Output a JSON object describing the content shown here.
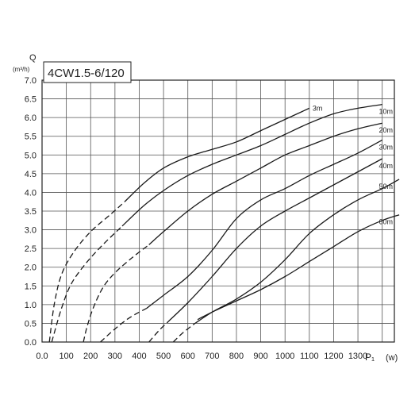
{
  "chart_data": {
    "type": "line",
    "title": "4CW1.5-6/120",
    "ylabel": "Q",
    "yunit": "(m³/h)",
    "xlabel": "P₁",
    "xunit": "(w)",
    "xlim": [
      0,
      1450
    ],
    "ylim": [
      0,
      7.0
    ],
    "x_ticks": [
      0,
      100,
      200,
      300,
      400,
      500,
      600,
      700,
      800,
      900,
      1000,
      1100,
      1200,
      1300
    ],
    "x_tick_labels": [
      "0.0",
      "100",
      "200",
      "300",
      "400",
      "500",
      "600",
      "700",
      "800",
      "900",
      "1000",
      "1100",
      "1200",
      "1300"
    ],
    "y_ticks": [
      0,
      0.5,
      1.0,
      1.5,
      2.0,
      2.5,
      3.0,
      3.5,
      4.0,
      4.5,
      5.0,
      5.5,
      6.0,
      6.5,
      7.0
    ],
    "y_tick_labels": [
      "0.0",
      "0.5",
      "1.0",
      "1.5",
      "2.0",
      "2.5",
      "3.0",
      "3.5",
      "4.0",
      "4.5",
      "5.0",
      "5.5",
      "6.0",
      "6.5",
      "7.0"
    ],
    "grid": true,
    "series": [
      {
        "name": "3m",
        "dashed": [
          [
            30,
            0
          ],
          [
            50,
            1.0
          ],
          [
            80,
            1.8
          ],
          [
            130,
            2.4
          ],
          [
            200,
            2.95
          ],
          [
            280,
            3.4
          ],
          [
            340,
            3.75
          ]
        ],
        "solid": [
          [
            340,
            3.75
          ],
          [
            420,
            4.25
          ],
          [
            500,
            4.65
          ],
          [
            600,
            4.95
          ],
          [
            700,
            5.15
          ],
          [
            800,
            5.35
          ],
          [
            900,
            5.65
          ],
          [
            1000,
            5.95
          ],
          [
            1100,
            6.25
          ]
        ]
      },
      {
        "name": "10m",
        "dashed": [
          [
            40,
            0
          ],
          [
            80,
            0.9
          ],
          [
            120,
            1.55
          ],
          [
            180,
            2.1
          ],
          [
            250,
            2.6
          ],
          [
            330,
            3.1
          ]
        ],
        "solid": [
          [
            330,
            3.1
          ],
          [
            420,
            3.65
          ],
          [
            500,
            4.05
          ],
          [
            600,
            4.45
          ],
          [
            700,
            4.75
          ],
          [
            800,
            5.0
          ],
          [
            900,
            5.25
          ],
          [
            1000,
            5.55
          ],
          [
            1100,
            5.85
          ],
          [
            1200,
            6.1
          ],
          [
            1300,
            6.25
          ],
          [
            1400,
            6.35
          ]
        ]
      },
      {
        "name": "20m",
        "dashed": [
          [
            170,
            0
          ],
          [
            185,
            0.4
          ],
          [
            210,
            0.9
          ],
          [
            250,
            1.45
          ],
          [
            300,
            1.85
          ],
          [
            370,
            2.25
          ],
          [
            440,
            2.6
          ]
        ],
        "solid": [
          [
            440,
            2.6
          ],
          [
            500,
            2.95
          ],
          [
            600,
            3.5
          ],
          [
            700,
            3.95
          ],
          [
            800,
            4.3
          ],
          [
            900,
            4.65
          ],
          [
            1000,
            5.0
          ],
          [
            1100,
            5.25
          ],
          [
            1200,
            5.5
          ],
          [
            1300,
            5.7
          ],
          [
            1400,
            5.85
          ]
        ]
      },
      {
        "name": "30m",
        "dashed": [
          [
            240,
            0
          ],
          [
            300,
            0.35
          ],
          [
            360,
            0.65
          ],
          [
            430,
            0.9
          ]
        ],
        "solid": [
          [
            430,
            0.9
          ],
          [
            500,
            1.25
          ],
          [
            600,
            1.75
          ],
          [
            700,
            2.45
          ],
          [
            800,
            3.3
          ],
          [
            900,
            3.8
          ],
          [
            1000,
            4.1
          ],
          [
            1100,
            4.45
          ],
          [
            1200,
            4.75
          ],
          [
            1300,
            5.05
          ],
          [
            1400,
            5.4
          ]
        ]
      },
      {
        "name": "40m",
        "dashed": [
          [
            440,
            0
          ],
          [
            480,
            0.3
          ],
          [
            520,
            0.55
          ]
        ],
        "solid": [
          [
            520,
            0.55
          ],
          [
            600,
            1.05
          ],
          [
            700,
            1.75
          ],
          [
            800,
            2.5
          ],
          [
            900,
            3.1
          ],
          [
            1000,
            3.5
          ],
          [
            1100,
            3.85
          ],
          [
            1200,
            4.2
          ],
          [
            1300,
            4.55
          ],
          [
            1400,
            4.9
          ]
        ]
      },
      {
        "name": "50m",
        "dashed": [
          [
            540,
            0
          ],
          [
            580,
            0.25
          ],
          [
            630,
            0.5
          ]
        ],
        "solid": [
          [
            630,
            0.5
          ],
          [
            700,
            0.8
          ],
          [
            800,
            1.15
          ],
          [
            900,
            1.6
          ],
          [
            1000,
            2.2
          ],
          [
            1100,
            2.9
          ],
          [
            1200,
            3.4
          ],
          [
            1300,
            3.8
          ],
          [
            1400,
            4.1
          ],
          [
            1470,
            4.35
          ]
        ]
      },
      {
        "name": "60m",
        "dashed": [],
        "solid": [
          [
            640,
            0.6
          ],
          [
            700,
            0.8
          ],
          [
            800,
            1.1
          ],
          [
            900,
            1.4
          ],
          [
            1000,
            1.75
          ],
          [
            1100,
            2.15
          ],
          [
            1200,
            2.55
          ],
          [
            1300,
            2.95
          ],
          [
            1400,
            3.25
          ],
          [
            1470,
            3.4
          ]
        ]
      }
    ]
  }
}
